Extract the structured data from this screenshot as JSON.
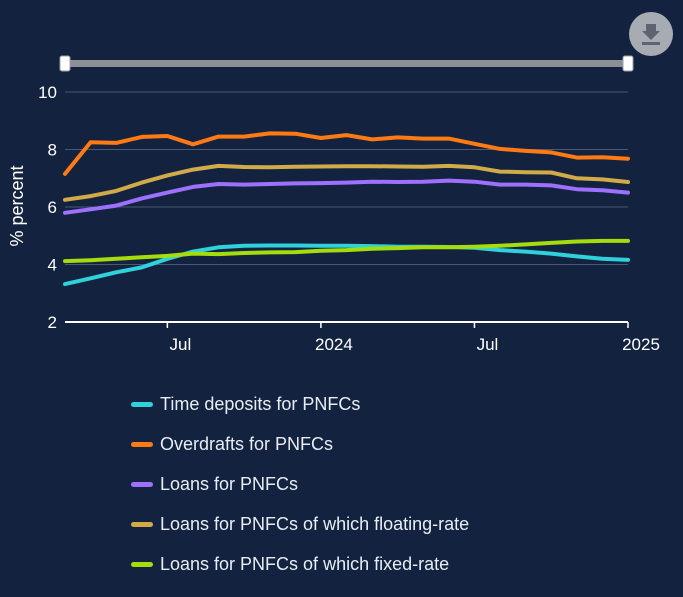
{
  "toolbar": {
    "download_icon": "download-icon"
  },
  "chart_data": {
    "type": "line",
    "ylabel": "% percent",
    "xlabel": "",
    "ylim": [
      2,
      10
    ],
    "yticks": [
      2,
      4,
      6,
      8,
      10
    ],
    "xlim": [
      "2023-03",
      "2025-01"
    ],
    "xticks": [
      {
        "x": "2023-07",
        "label": "Jul"
      },
      {
        "x": "2024-01",
        "label": "2024"
      },
      {
        "x": "2024-07",
        "label": "Jul"
      },
      {
        "x": "2025-01",
        "label": "2025"
      }
    ],
    "grid": true,
    "legend_position": "bottom",
    "x": [
      "2023-03",
      "2023-04",
      "2023-05",
      "2023-06",
      "2023-07",
      "2023-08",
      "2023-09",
      "2023-10",
      "2023-11",
      "2023-12",
      "2024-01",
      "2024-02",
      "2024-03",
      "2024-04",
      "2024-05",
      "2024-06",
      "2024-07",
      "2024-08",
      "2024-09",
      "2024-10",
      "2024-11",
      "2024-12",
      "2025-01"
    ],
    "series": [
      {
        "name": "Time deposits for PNFCs",
        "color": "#2fd1da",
        "values": [
          3.32,
          3.52,
          3.73,
          3.9,
          4.2,
          4.45,
          4.6,
          4.65,
          4.66,
          4.66,
          4.65,
          4.65,
          4.64,
          4.62,
          4.62,
          4.61,
          4.58,
          4.5,
          4.45,
          4.38,
          4.28,
          4.2,
          4.16
        ]
      },
      {
        "name": "Overdrafts for PNFCs",
        "color": "#ff7a12",
        "values": [
          7.15,
          8.25,
          8.23,
          8.44,
          8.47,
          8.18,
          8.45,
          8.45,
          8.56,
          8.55,
          8.4,
          8.5,
          8.35,
          8.42,
          8.38,
          8.38,
          8.2,
          8.02,
          7.95,
          7.9,
          7.72,
          7.73,
          7.68
        ]
      },
      {
        "name": "Loans for PNFCs",
        "color": "#9e70ff",
        "values": [
          5.8,
          5.92,
          6.05,
          6.3,
          6.5,
          6.7,
          6.8,
          6.78,
          6.8,
          6.82,
          6.83,
          6.85,
          6.88,
          6.87,
          6.88,
          6.92,
          6.88,
          6.78,
          6.78,
          6.75,
          6.62,
          6.58,
          6.5
        ]
      },
      {
        "name": "Loans for PNFCs of which floating-rate",
        "color": "#d2ab49",
        "values": [
          6.25,
          6.38,
          6.56,
          6.85,
          7.1,
          7.3,
          7.43,
          7.39,
          7.38,
          7.4,
          7.41,
          7.42,
          7.42,
          7.41,
          7.4,
          7.43,
          7.38,
          7.23,
          7.21,
          7.2,
          7.0,
          6.96,
          6.87
        ]
      },
      {
        "name": "Loans for PNFCs of which fixed-rate",
        "color": "#a5dc0c",
        "values": [
          4.12,
          4.15,
          4.2,
          4.25,
          4.3,
          4.38,
          4.36,
          4.4,
          4.42,
          4.43,
          4.48,
          4.5,
          4.55,
          4.57,
          4.6,
          4.6,
          4.62,
          4.65,
          4.7,
          4.75,
          4.8,
          4.82,
          4.82
        ]
      }
    ]
  }
}
